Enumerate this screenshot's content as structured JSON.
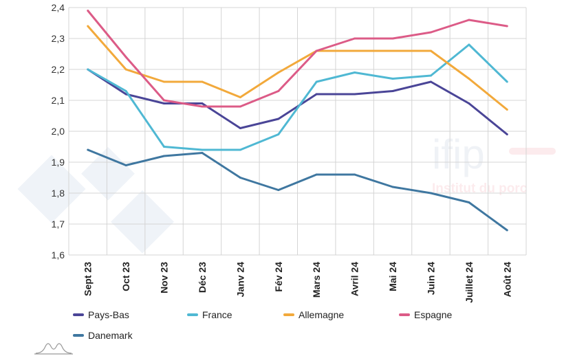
{
  "chart_data": {
    "type": "line",
    "categories": [
      "Sept 23",
      "Oct 23",
      "Nov 23",
      "Déc 23",
      "Janv 24",
      "Fév 24",
      "Mars 24",
      "Avril 24",
      "Mai 24",
      "Juin 24",
      "Juillet 24",
      "Août 24"
    ],
    "ylim": [
      1.6,
      2.4
    ],
    "yticks": [
      "1,6",
      "1,7",
      "1,8",
      "1,9",
      "2,0",
      "2,1",
      "2,2",
      "2,3",
      "2,4"
    ],
    "grid": true,
    "legend_placement": "bottom",
    "series": [
      {
        "name": "Pays-Bas",
        "color": "#4a4597",
        "values": [
          2.2,
          2.12,
          2.09,
          2.09,
          2.01,
          2.04,
          2.12,
          2.12,
          2.13,
          2.16,
          2.09,
          1.99
        ]
      },
      {
        "name": "France",
        "color": "#4fb8d3",
        "values": [
          2.2,
          2.13,
          1.95,
          1.94,
          1.94,
          1.99,
          2.16,
          2.19,
          2.17,
          2.18,
          2.28,
          2.16
        ]
      },
      {
        "name": "Allemagne",
        "color": "#f2a93b",
        "values": [
          2.34,
          2.2,
          2.16,
          2.16,
          2.11,
          2.19,
          2.26,
          2.26,
          2.26,
          2.26,
          2.17,
          2.07
        ]
      },
      {
        "name": "Espagne",
        "color": "#dc5b87",
        "values": [
          2.39,
          2.24,
          2.1,
          2.08,
          2.08,
          2.13,
          2.26,
          2.3,
          2.3,
          2.32,
          2.36,
          2.34
        ]
      },
      {
        "name": "Danemark",
        "color": "#3f77a0",
        "values": [
          1.94,
          1.89,
          1.92,
          1.93,
          1.85,
          1.81,
          1.86,
          1.86,
          1.82,
          1.8,
          1.77,
          1.68
        ]
      }
    ]
  },
  "watermark": {
    "brand": "ifip",
    "tagline": "Institut du porc"
  }
}
